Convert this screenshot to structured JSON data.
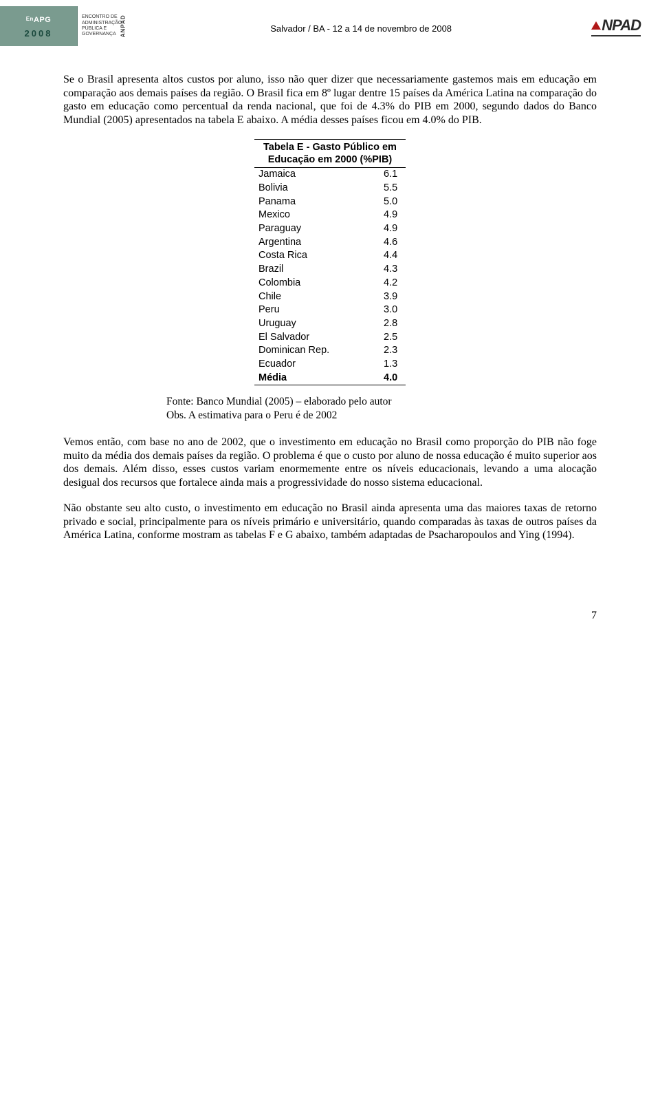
{
  "header": {
    "logo_left_top_prefix": "En",
    "logo_left_top": "APG",
    "logo_left_year": "2008",
    "logo_mid_l1": "ENCONTRO DE",
    "logo_mid_l2": "ADMINISTRAÇÃO",
    "logo_mid_l3": "PÚBLICA E",
    "logo_mid_l4": "GOVERNANÇA",
    "logo_mid_vertical": "ANPAD",
    "center_text": "Salvador / BA - 12 a 14 de novembro de 2008",
    "logo_right_text": "NPAD"
  },
  "paragraphs": {
    "p1": "Se o Brasil apresenta altos custos por aluno, isso não quer dizer que necessariamente gastemos mais em educação em comparação aos demais países da região. O Brasil fica em 8º lugar dentre 15 países da América Latina na comparação do gasto em educação como percentual da renda nacional, que foi de 4.3% do PIB em 2000, segundo dados do Banco Mundial (2005) apresentados na tabela E abaixo. A média desses países ficou em 4.0% do PIB.",
    "p2": "Vemos então, com base no ano de 2002, que o investimento em educação no Brasil como proporção do PIB não foge muito da média dos demais países da região. O problema é que o custo por aluno de nossa educação é muito superior aos dos demais. Além disso, esses custos variam enormemente entre os níveis educacionais, levando a uma alocação desigual dos recursos que fortalece ainda mais a progressividade do nosso sistema educacional.",
    "p3": "Não obstante seu alto custo, o investimento em educação no Brasil ainda apresenta uma das maiores taxas de retorno privado e social, principalmente para os níveis primário e universitário, quando comparadas às taxas de outros países da América Latina, conforme mostram as tabelas F e G abaixo, também adaptadas de Psacharopoulos and Ying (1994)."
  },
  "table": {
    "title_l1": "Tabela E - Gasto Público em",
    "title_l2": "Educação em 2000 (%PIB)",
    "rows": [
      {
        "country": "Jamaica",
        "value": "6.1"
      },
      {
        "country": "Bolivia",
        "value": "5.5"
      },
      {
        "country": "Panama",
        "value": "5.0"
      },
      {
        "country": "Mexico",
        "value": "4.9"
      },
      {
        "country": "Paraguay",
        "value": "4.9"
      },
      {
        "country": "Argentina",
        "value": "4.6"
      },
      {
        "country": "Costa Rica",
        "value": "4.4"
      },
      {
        "country": "Brazil",
        "value": "4.3"
      },
      {
        "country": "Colombia",
        "value": "4.2"
      },
      {
        "country": "Chile",
        "value": "3.9"
      },
      {
        "country": "Peru",
        "value": "3.0"
      },
      {
        "country": "Uruguay",
        "value": "2.8"
      },
      {
        "country": "El Salvador",
        "value": "2.5"
      },
      {
        "country": "Dominican Rep.",
        "value": "2.3"
      },
      {
        "country": "Ecuador",
        "value": "1.3"
      }
    ],
    "footer": {
      "country": "Média",
      "value": "4.0"
    }
  },
  "source": {
    "l1": "Fonte: Banco Mundial (2005) – elaborado pelo autor",
    "l2": "Obs. A estimativa para o Peru é de 2002"
  },
  "page_number": "7"
}
